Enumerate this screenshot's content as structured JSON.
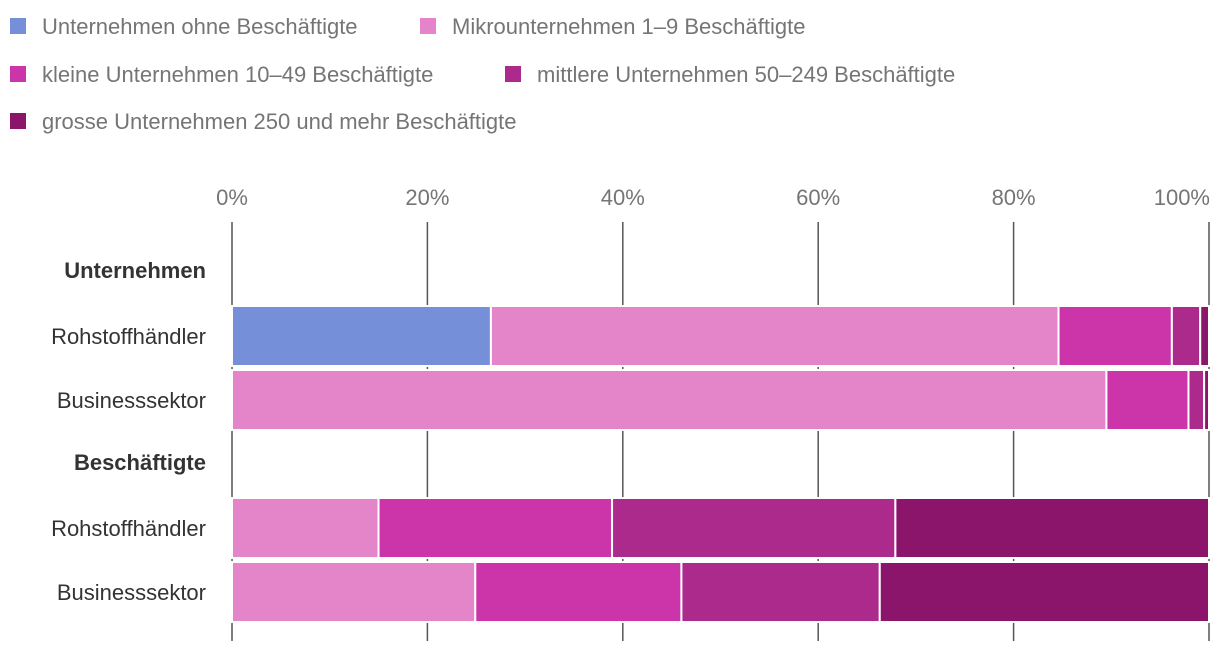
{
  "chart_data": {
    "type": "bar",
    "orientation": "horizontal",
    "stacked": true,
    "title": "",
    "xlabel": "",
    "ylabel": "",
    "xlim": [
      0,
      100
    ],
    "tick_values": [
      0,
      20,
      40,
      60,
      80,
      100
    ],
    "tick_labels": [
      "0%",
      "20%",
      "40%",
      "60%",
      "80%",
      "100%"
    ],
    "grid": true,
    "legend_position": "top-left",
    "series": [
      {
        "name": "Unternehmen ohne Beschäftigte",
        "color": "#7590d9"
      },
      {
        "name": "Mikrounternehmen 1–9 Beschäftigte",
        "color": "#e585c9"
      },
      {
        "name": "kleine Unternehmen 10–49 Beschäftigte",
        "color": "#cb35a9"
      },
      {
        "name": "mittlere Unternehmen 50–249 Beschäftigte",
        "color": "#ab2a8c"
      },
      {
        "name": "grosse Unternehmen 250 und mehr Beschäftigte",
        "color": "#8b156b"
      }
    ],
    "groups": [
      {
        "label": "Unternehmen",
        "rows": [
          {
            "label": "Rohstoffhändler",
            "values": [
              26.5,
              58.1,
              11.6,
              2.9,
              0.9
            ]
          },
          {
            "label": "Businesssektor",
            "values": [
              0,
              89.5,
              8.4,
              1.6,
              0.5
            ]
          }
        ]
      },
      {
        "label": "Beschäftigte",
        "rows": [
          {
            "label": "Rohstoffhändler",
            "values": [
              0,
              15.0,
              23.9,
              29.0,
              32.1
            ]
          },
          {
            "label": "Businesssektor",
            "values": [
              0,
              24.9,
              21.1,
              20.3,
              33.7
            ]
          }
        ]
      }
    ]
  }
}
